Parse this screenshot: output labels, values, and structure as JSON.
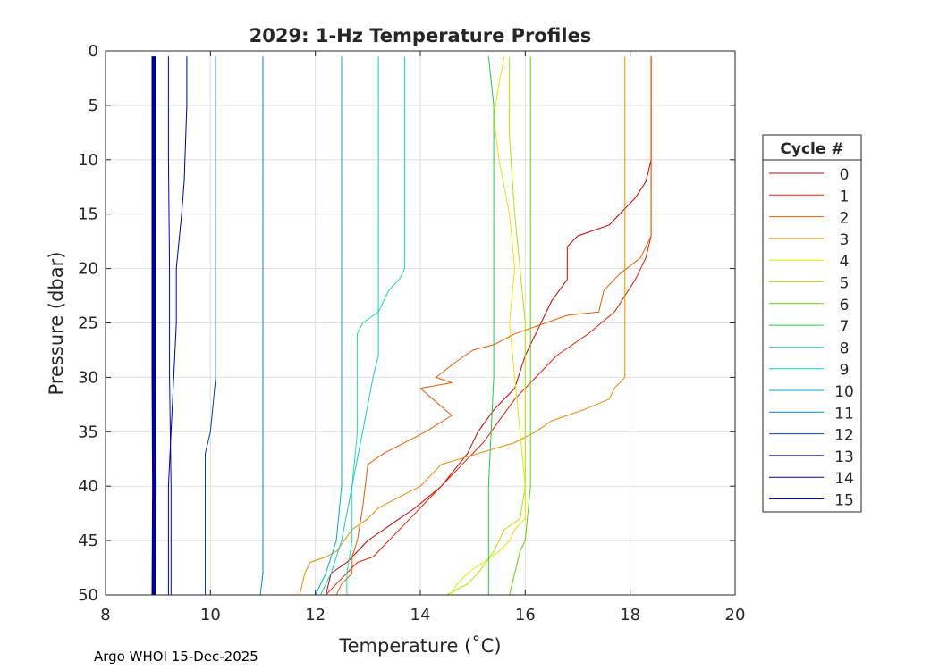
{
  "footer": "Argo WHOI 15-Dec-2025",
  "chart_data": {
    "type": "line",
    "title": "2029: 1-Hz Temperature Profiles",
    "xlabel": "Temperature (˚C)",
    "ylabel": "Pressure (dbar)",
    "xlim": [
      8,
      20
    ],
    "ylim": [
      0,
      50
    ],
    "y_reversed": true,
    "xticks": [
      8,
      10,
      12,
      14,
      16,
      18,
      20
    ],
    "yticks": [
      0,
      5,
      10,
      15,
      20,
      25,
      30,
      35,
      40,
      45,
      50
    ],
    "grid": true,
    "legend_title": "Cycle #",
    "legend_position": "right",
    "series": [
      {
        "name": "0",
        "color": "#cc0000",
        "points": [
          [
            18.4,
            0.5
          ],
          [
            18.4,
            10
          ],
          [
            18.3,
            12
          ],
          [
            18.1,
            13.5
          ],
          [
            17.6,
            16
          ],
          [
            17.0,
            17
          ],
          [
            16.8,
            18
          ],
          [
            16.8,
            21
          ],
          [
            16.5,
            23
          ],
          [
            16.2,
            26
          ],
          [
            16.0,
            28
          ],
          [
            15.8,
            31
          ],
          [
            15.4,
            33
          ],
          [
            15.1,
            35
          ],
          [
            14.9,
            37
          ],
          [
            14.4,
            40
          ],
          [
            13.9,
            42
          ],
          [
            13.6,
            43
          ],
          [
            13.0,
            45
          ],
          [
            12.6,
            47
          ],
          [
            12.3,
            48
          ],
          [
            12.2,
            50
          ]
        ]
      },
      {
        "name": "1",
        "color": "#e62200",
        "points": [
          [
            18.4,
            0.5
          ],
          [
            18.4,
            17
          ],
          [
            18.3,
            19
          ],
          [
            18.1,
            21
          ],
          [
            17.7,
            24
          ],
          [
            17.2,
            26
          ],
          [
            16.6,
            28
          ],
          [
            16.2,
            30
          ],
          [
            15.8,
            32
          ],
          [
            15.5,
            34
          ],
          [
            15.2,
            36
          ],
          [
            14.8,
            38
          ],
          [
            14.2,
            41
          ],
          [
            13.8,
            43
          ],
          [
            13.4,
            45
          ],
          [
            13.1,
            46.5
          ],
          [
            12.8,
            47
          ],
          [
            12.7,
            47.5
          ],
          [
            12.5,
            48.5
          ],
          [
            12.4,
            49
          ],
          [
            12.2,
            50
          ]
        ]
      },
      {
        "name": "2",
        "color": "#e65c00",
        "points": [
          [
            18.4,
            0.5
          ],
          [
            18.4,
            17
          ],
          [
            18.2,
            19
          ],
          [
            17.8,
            20.5
          ],
          [
            17.5,
            22
          ],
          [
            17.4,
            24
          ],
          [
            16.8,
            24.3
          ],
          [
            15.8,
            26
          ],
          [
            15.4,
            27
          ],
          [
            15.0,
            27.5
          ],
          [
            14.7,
            28.5
          ],
          [
            14.3,
            30
          ],
          [
            14.6,
            30.5
          ],
          [
            14.0,
            31
          ],
          [
            14.6,
            33.5
          ],
          [
            14.1,
            35
          ],
          [
            13.3,
            37
          ],
          [
            13.0,
            38
          ],
          [
            12.9,
            42
          ],
          [
            12.8,
            45
          ],
          [
            12.7,
            46.5
          ],
          [
            12.7,
            48
          ],
          [
            12.5,
            49
          ],
          [
            12.4,
            50
          ]
        ]
      },
      {
        "name": "3",
        "color": "#e68a00",
        "points": [
          [
            17.9,
            0.5
          ],
          [
            17.9,
            30
          ],
          [
            17.7,
            31
          ],
          [
            17.6,
            32
          ],
          [
            17.1,
            33
          ],
          [
            16.5,
            34
          ],
          [
            16.2,
            35
          ],
          [
            15.8,
            36
          ],
          [
            15.1,
            37
          ],
          [
            14.4,
            38
          ],
          [
            14.2,
            39
          ],
          [
            14.0,
            40
          ],
          [
            13.6,
            41
          ],
          [
            13.2,
            42
          ],
          [
            13.0,
            43
          ],
          [
            12.7,
            44
          ],
          [
            12.4,
            46
          ],
          [
            12.2,
            46.5
          ],
          [
            11.9,
            47
          ],
          [
            11.8,
            48
          ],
          [
            11.7,
            50
          ]
        ]
      },
      {
        "name": "4",
        "color": "#e6e600",
        "points": [
          [
            15.6,
            0.5
          ],
          [
            15.5,
            3
          ],
          [
            15.4,
            6
          ],
          [
            15.5,
            10
          ],
          [
            15.7,
            15
          ],
          [
            15.8,
            20
          ],
          [
            15.7,
            25
          ],
          [
            15.8,
            30
          ],
          [
            15.9,
            35
          ],
          [
            16.0,
            40
          ],
          [
            16.0,
            43
          ],
          [
            15.8,
            44
          ],
          [
            15.7,
            45
          ],
          [
            15.5,
            46
          ],
          [
            15.2,
            47
          ],
          [
            14.9,
            48
          ],
          [
            14.7,
            49
          ],
          [
            14.6,
            50
          ]
        ]
      },
      {
        "name": "5",
        "color": "#b0e600",
        "points": [
          [
            15.7,
            0.5
          ],
          [
            15.7,
            8
          ],
          [
            15.8,
            15
          ],
          [
            15.9,
            20
          ],
          [
            16.0,
            25
          ],
          [
            16.0,
            30
          ],
          [
            16.0,
            35
          ],
          [
            16.0,
            40
          ],
          [
            15.9,
            43
          ],
          [
            15.6,
            44
          ],
          [
            15.5,
            45
          ],
          [
            15.4,
            46
          ],
          [
            15.1,
            48
          ],
          [
            14.9,
            49
          ],
          [
            14.5,
            50
          ]
        ]
      },
      {
        "name": "6",
        "color": "#5ad800",
        "points": [
          [
            16.1,
            0.5
          ],
          [
            16.1,
            10
          ],
          [
            16.1,
            20
          ],
          [
            16.1,
            30
          ],
          [
            16.1,
            40
          ],
          [
            16.0,
            45
          ],
          [
            15.9,
            46
          ],
          [
            15.8,
            48
          ],
          [
            15.7,
            50
          ]
        ]
      },
      {
        "name": "7",
        "color": "#22cc44",
        "points": [
          [
            15.3,
            0.5
          ],
          [
            15.4,
            5
          ],
          [
            15.4,
            10
          ],
          [
            15.4,
            20
          ],
          [
            15.4,
            30
          ],
          [
            15.3,
            40
          ],
          [
            15.3,
            50
          ]
        ]
      },
      {
        "name": "8",
        "color": "#22ddaa",
        "points": [
          [
            13.7,
            0.5
          ],
          [
            13.7,
            10
          ],
          [
            13.7,
            20
          ],
          [
            13.6,
            21
          ],
          [
            13.4,
            22
          ],
          [
            13.3,
            23
          ],
          [
            13.2,
            24
          ],
          [
            12.9,
            25
          ],
          [
            12.8,
            26
          ],
          [
            12.8,
            35
          ],
          [
            12.7,
            40
          ],
          [
            12.7,
            45
          ],
          [
            12.6,
            48
          ],
          [
            12.6,
            50
          ]
        ]
      },
      {
        "name": "9",
        "color": "#11cccc",
        "points": [
          [
            13.2,
            0.5
          ],
          [
            13.2,
            10
          ],
          [
            13.2,
            20
          ],
          [
            13.2,
            25
          ],
          [
            13.2,
            28
          ],
          [
            13.1,
            30
          ],
          [
            12.9,
            35
          ],
          [
            12.7,
            40
          ],
          [
            12.5,
            45
          ],
          [
            12.3,
            48
          ],
          [
            12.1,
            50
          ]
        ]
      },
      {
        "name": "10",
        "color": "#00aadd",
        "points": [
          [
            12.5,
            0.5
          ],
          [
            12.5,
            10
          ],
          [
            12.5,
            20
          ],
          [
            12.5,
            30
          ],
          [
            12.5,
            40
          ],
          [
            12.4,
            45
          ],
          [
            12.2,
            48
          ],
          [
            12.0,
            50
          ]
        ]
      },
      {
        "name": "11",
        "color": "#0088bb",
        "points": [
          [
            11.0,
            0.5
          ],
          [
            11.0,
            10
          ],
          [
            11.0,
            20
          ],
          [
            11.0,
            30
          ],
          [
            11.0,
            40
          ],
          [
            11.0,
            48
          ],
          [
            10.95,
            50
          ]
        ]
      },
      {
        "name": "12",
        "color": "#0044aa",
        "points": [
          [
            10.1,
            0.5
          ],
          [
            10.1,
            10
          ],
          [
            10.1,
            20
          ],
          [
            10.1,
            30
          ],
          [
            10.0,
            35
          ],
          [
            9.9,
            37
          ],
          [
            9.9,
            40
          ],
          [
            9.9,
            45
          ],
          [
            9.9,
            48
          ],
          [
            9.9,
            50
          ]
        ]
      },
      {
        "name": "13",
        "color": "#000099",
        "points": [
          [
            9.55,
            0.5
          ],
          [
            9.55,
            5
          ],
          [
            9.5,
            12
          ],
          [
            9.45,
            15
          ],
          [
            9.35,
            20
          ],
          [
            9.35,
            25
          ],
          [
            9.3,
            30
          ],
          [
            9.25,
            35
          ],
          [
            9.2,
            40
          ],
          [
            9.2,
            45
          ],
          [
            9.2,
            50
          ]
        ]
      },
      {
        "name": "14",
        "color": "#000099",
        "points": [
          [
            8.92,
            0.5
          ],
          [
            8.92,
            10
          ],
          [
            8.92,
            20
          ],
          [
            8.92,
            30
          ],
          [
            8.93,
            40
          ],
          [
            8.92,
            50
          ]
        ]
      },
      {
        "name": "15",
        "color": "#0000cc",
        "points": [
          [
            9.2,
            0.5
          ],
          [
            9.2,
            5
          ],
          [
            9.2,
            10
          ],
          [
            9.22,
            20
          ],
          [
            9.22,
            30
          ],
          [
            9.25,
            40
          ],
          [
            9.25,
            50
          ]
        ]
      }
    ]
  }
}
